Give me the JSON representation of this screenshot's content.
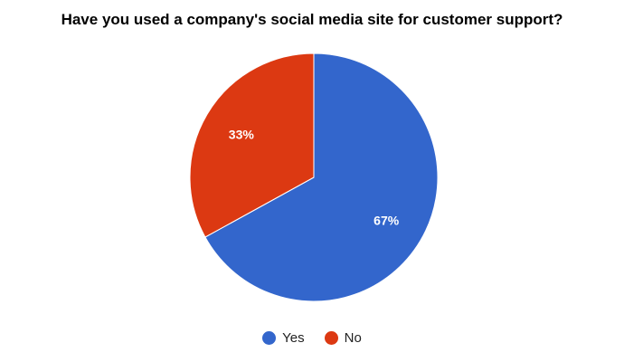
{
  "chart_data": {
    "type": "pie",
    "title": "Have you used a company's social media site for customer support?",
    "slices": [
      {
        "label": "Yes",
        "value": 67,
        "display": "67%",
        "color": "#3366cc"
      },
      {
        "label": "No",
        "value": 33,
        "display": "33%",
        "color": "#dc3912"
      }
    ],
    "legend_position": "bottom"
  }
}
